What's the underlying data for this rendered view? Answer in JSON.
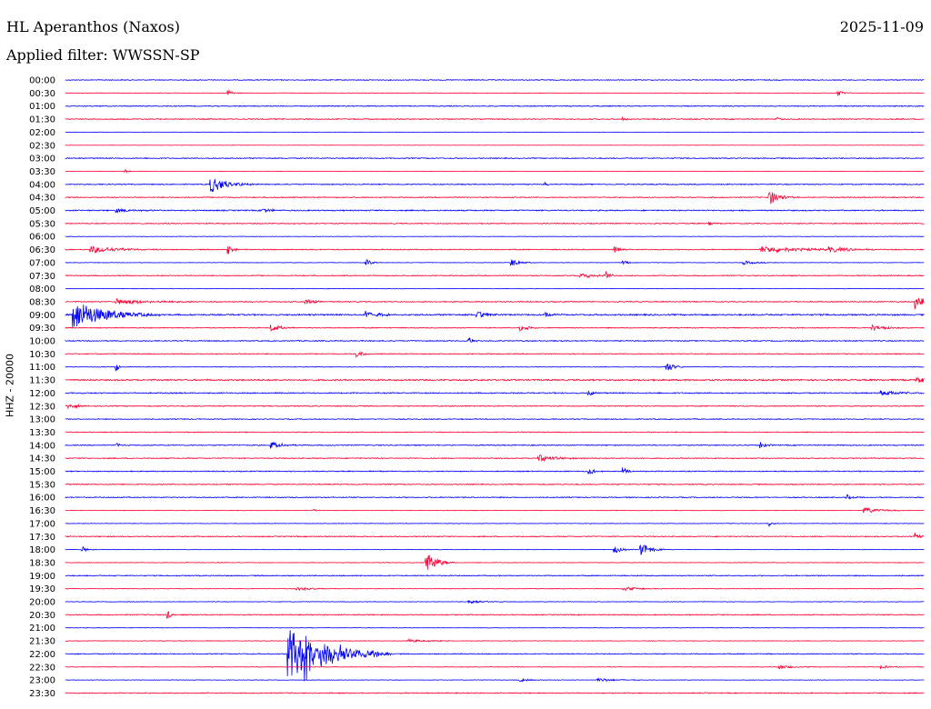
{
  "header": {
    "station": "HL Aperanthos (Naxos)",
    "date": "2025-11-09",
    "filter": "Applied filter: WWSSN-SP"
  },
  "chart_data": {
    "type": "line",
    "subtype": "helicorder",
    "ylabel": "HHZ - 20000",
    "trace_colors": [
      "#0000ff",
      "#ff0033"
    ],
    "rows": [
      {
        "label": "00:00",
        "color": "#0000ff",
        "noise": 0.9,
        "events": []
      },
      {
        "label": "00:30",
        "color": "#ff0033",
        "noise": 0.6,
        "events": [
          {
            "pos": 0.19,
            "amp": 3,
            "width": 0.006
          },
          {
            "pos": 0.9,
            "amp": 3,
            "width": 0.006
          }
        ]
      },
      {
        "label": "01:00",
        "color": "#0000ff",
        "noise": 1.0,
        "events": []
      },
      {
        "label": "01:30",
        "color": "#ff0033",
        "noise": 1.0,
        "events": [
          {
            "pos": 0.65,
            "amp": 2.5,
            "width": 0.003
          },
          {
            "pos": 0.83,
            "amp": 2.5,
            "width": 0.003
          }
        ]
      },
      {
        "label": "02:00",
        "color": "#0000ff",
        "noise": 0.4,
        "events": []
      },
      {
        "label": "02:30",
        "color": "#ff0033",
        "noise": 0.3,
        "events": []
      },
      {
        "label": "03:00",
        "color": "#0000ff",
        "noise": 1.0,
        "events": []
      },
      {
        "label": "03:30",
        "color": "#ff0033",
        "noise": 0.4,
        "events": [
          {
            "pos": 0.07,
            "amp": 2,
            "width": 0.004
          }
        ]
      },
      {
        "label": "04:00",
        "color": "#0000ff",
        "noise": 1.0,
        "events": [
          {
            "pos": 0.17,
            "amp": 9,
            "width": 0.018
          },
          {
            "pos": 0.56,
            "amp": 2,
            "width": 0.004
          }
        ]
      },
      {
        "label": "04:30",
        "color": "#ff0033",
        "noise": 1.0,
        "events": [
          {
            "pos": 0.82,
            "amp": 8,
            "width": 0.012
          }
        ]
      },
      {
        "label": "05:00",
        "color": "#0000ff",
        "noise": 1.2,
        "events": [
          {
            "pos": 0.06,
            "amp": 2.5,
            "width": 0.02
          },
          {
            "pos": 0.23,
            "amp": 2.5,
            "width": 0.01
          }
        ]
      },
      {
        "label": "05:30",
        "color": "#ff0033",
        "noise": 1.0,
        "events": [
          {
            "pos": 0.75,
            "amp": 3,
            "width": 0.004
          }
        ]
      },
      {
        "label": "06:00",
        "color": "#0000ff",
        "noise": 0.5,
        "events": []
      },
      {
        "label": "06:30",
        "color": "#ff0033",
        "noise": 1.0,
        "events": [
          {
            "pos": 0.03,
            "amp": 4,
            "width": 0.03
          },
          {
            "pos": 0.19,
            "amp": 5,
            "width": 0.005
          },
          {
            "pos": 0.64,
            "amp": 5,
            "width": 0.005
          },
          {
            "pos": 0.81,
            "amp": 4,
            "width": 0.04
          },
          {
            "pos": 0.89,
            "amp": 3,
            "width": 0.025
          }
        ]
      },
      {
        "label": "07:00",
        "color": "#0000ff",
        "noise": 0.5,
        "events": [
          {
            "pos": 0.35,
            "amp": 4,
            "width": 0.006
          },
          {
            "pos": 0.52,
            "amp": 4,
            "width": 0.01
          },
          {
            "pos": 0.65,
            "amp": 3,
            "width": 0.005
          },
          {
            "pos": 0.79,
            "amp": 2,
            "width": 0.015
          }
        ]
      },
      {
        "label": "07:30",
        "color": "#ff0033",
        "noise": 1.0,
        "events": [
          {
            "pos": 0.6,
            "amp": 3,
            "width": 0.02
          },
          {
            "pos": 0.63,
            "amp": 5,
            "width": 0.005
          }
        ]
      },
      {
        "label": "08:00",
        "color": "#0000ff",
        "noise": 0.5,
        "events": []
      },
      {
        "label": "08:30",
        "color": "#ff0033",
        "noise": 1.0,
        "events": [
          {
            "pos": 0.06,
            "amp": 3,
            "width": 0.04
          },
          {
            "pos": 0.28,
            "amp": 3,
            "width": 0.01
          },
          {
            "pos": 0.99,
            "amp": 9,
            "width": 0.01
          }
        ]
      },
      {
        "label": "09:00",
        "color": "#0000ff",
        "noise": 1.5,
        "events": [
          {
            "pos": 0.01,
            "amp": 16,
            "width": 0.035
          },
          {
            "pos": 0.35,
            "amp": 4,
            "width": 0.015
          },
          {
            "pos": 0.48,
            "amp": 4,
            "width": 0.012
          },
          {
            "pos": 0.56,
            "amp": 3,
            "width": 0.006
          }
        ]
      },
      {
        "label": "09:30",
        "color": "#ff0033",
        "noise": 1.0,
        "events": [
          {
            "pos": 0.24,
            "amp": 4,
            "width": 0.01
          },
          {
            "pos": 0.53,
            "amp": 3,
            "width": 0.01
          },
          {
            "pos": 0.94,
            "amp": 3,
            "width": 0.015
          }
        ]
      },
      {
        "label": "10:00",
        "color": "#0000ff",
        "noise": 1.0,
        "events": [
          {
            "pos": 0.47,
            "amp": 4,
            "width": 0.004
          }
        ]
      },
      {
        "label": "10:30",
        "color": "#ff0033",
        "noise": 1.0,
        "events": [
          {
            "pos": 0.34,
            "amp": 4,
            "width": 0.006
          }
        ]
      },
      {
        "label": "11:00",
        "color": "#0000ff",
        "noise": 0.6,
        "events": [
          {
            "pos": 0.06,
            "amp": 5,
            "width": 0.002
          },
          {
            "pos": 0.7,
            "amp": 6,
            "width": 0.008
          }
        ]
      },
      {
        "label": "11:30",
        "color": "#ff0033",
        "noise": 1.5,
        "events": [
          {
            "pos": 0.99,
            "amp": 4,
            "width": 0.01
          }
        ]
      },
      {
        "label": "12:00",
        "color": "#0000ff",
        "noise": 1.2,
        "events": [
          {
            "pos": 0.61,
            "amp": 3,
            "width": 0.006
          },
          {
            "pos": 0.95,
            "amp": 3,
            "width": 0.02
          }
        ]
      },
      {
        "label": "12:30",
        "color": "#ff0033",
        "noise": 1.0,
        "events": [
          {
            "pos": 0.005,
            "amp": 3,
            "width": 0.01
          }
        ]
      },
      {
        "label": "13:00",
        "color": "#0000ff",
        "noise": 0.9,
        "events": []
      },
      {
        "label": "13:30",
        "color": "#ff0033",
        "noise": 0.9,
        "events": []
      },
      {
        "label": "14:00",
        "color": "#0000ff",
        "noise": 1.0,
        "events": [
          {
            "pos": 0.06,
            "amp": 3,
            "width": 0.005
          },
          {
            "pos": 0.24,
            "amp": 4,
            "width": 0.012
          },
          {
            "pos": 0.81,
            "amp": 4,
            "width": 0.006
          }
        ]
      },
      {
        "label": "14:30",
        "color": "#ff0033",
        "noise": 1.0,
        "events": [
          {
            "pos": 0.55,
            "amp": 4,
            "width": 0.02
          }
        ]
      },
      {
        "label": "15:00",
        "color": "#0000ff",
        "noise": 1.0,
        "events": [
          {
            "pos": 0.61,
            "amp": 3,
            "width": 0.01
          },
          {
            "pos": 0.65,
            "amp": 4,
            "width": 0.005
          }
        ]
      },
      {
        "label": "15:30",
        "color": "#ff0033",
        "noise": 1.0,
        "events": []
      },
      {
        "label": "16:00",
        "color": "#0000ff",
        "noise": 1.0,
        "events": [
          {
            "pos": 0.91,
            "amp": 3,
            "width": 0.006
          }
        ]
      },
      {
        "label": "16:30",
        "color": "#ff0033",
        "noise": 0.6,
        "events": [
          {
            "pos": 0.29,
            "amp": 3,
            "width": 0.002
          },
          {
            "pos": 0.93,
            "amp": 3,
            "width": 0.02
          }
        ]
      },
      {
        "label": "17:00",
        "color": "#0000ff",
        "noise": 0.6,
        "events": [
          {
            "pos": 0.82,
            "amp": 3,
            "width": 0.004
          }
        ]
      },
      {
        "label": "17:30",
        "color": "#ff0033",
        "noise": 1.0,
        "events": [
          {
            "pos": 0.99,
            "amp": 4,
            "width": 0.006
          }
        ]
      },
      {
        "label": "18:00",
        "color": "#0000ff",
        "noise": 0.5,
        "events": [
          {
            "pos": 0.02,
            "amp": 3,
            "width": 0.006
          },
          {
            "pos": 0.64,
            "amp": 4,
            "width": 0.008
          },
          {
            "pos": 0.67,
            "amp": 8,
            "width": 0.01
          }
        ]
      },
      {
        "label": "18:30",
        "color": "#ff0033",
        "noise": 0.6,
        "events": [
          {
            "pos": 0.42,
            "amp": 12,
            "width": 0.012
          }
        ]
      },
      {
        "label": "19:00",
        "color": "#0000ff",
        "noise": 1.0,
        "events": []
      },
      {
        "label": "19:30",
        "color": "#ff0033",
        "noise": 0.6,
        "events": [
          {
            "pos": 0.27,
            "amp": 2,
            "width": 0.02
          },
          {
            "pos": 0.65,
            "amp": 2,
            "width": 0.02
          }
        ]
      },
      {
        "label": "20:00",
        "color": "#0000ff",
        "noise": 0.6,
        "events": [
          {
            "pos": 0.47,
            "amp": 2,
            "width": 0.02
          }
        ]
      },
      {
        "label": "20:30",
        "color": "#ff0033",
        "noise": 1.0,
        "events": [
          {
            "pos": 0.12,
            "amp": 4,
            "width": 0.004
          }
        ]
      },
      {
        "label": "21:00",
        "color": "#0000ff",
        "noise": 0.5,
        "events": []
      },
      {
        "label": "21:30",
        "color": "#ff0033",
        "noise": 0.6,
        "events": [
          {
            "pos": 0.4,
            "amp": 2,
            "width": 0.02
          }
        ]
      },
      {
        "label": "22:00",
        "color": "#0000ff",
        "noise": 1.0,
        "events": [
          {
            "pos": 0.26,
            "amp": 28,
            "width": 0.04
          },
          {
            "pos": 0.28,
            "amp": 18,
            "width": 0.03
          }
        ]
      },
      {
        "label": "22:30",
        "color": "#ff0033",
        "noise": 0.6,
        "events": [
          {
            "pos": 0.83,
            "amp": 2,
            "width": 0.02
          },
          {
            "pos": 0.95,
            "amp": 2,
            "width": 0.01
          }
        ]
      },
      {
        "label": "23:00",
        "color": "#0000ff",
        "noise": 0.5,
        "events": [
          {
            "pos": 0.53,
            "amp": 2,
            "width": 0.01
          },
          {
            "pos": 0.62,
            "amp": 2,
            "width": 0.02
          }
        ]
      },
      {
        "label": "23:30",
        "color": "#ff0033",
        "noise": 1.0,
        "events": []
      }
    ]
  }
}
